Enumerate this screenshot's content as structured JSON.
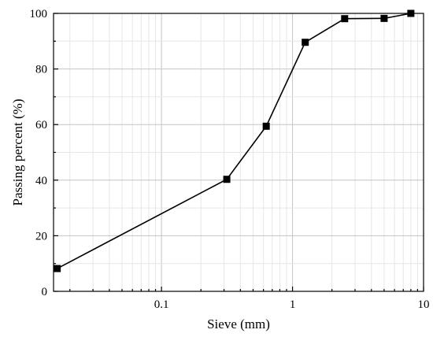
{
  "chart_data": {
    "type": "line",
    "xlabel": "Sieve (mm)",
    "ylabel": "Passing percent (%)",
    "xscale": "log",
    "xlim": [
      0.015,
      10
    ],
    "ylim": [
      0,
      100
    ],
    "grid": true,
    "marker": "square",
    "x_ticks": [
      {
        "value": 0.1,
        "label": "0.1"
      },
      {
        "value": 1,
        "label": "1"
      },
      {
        "value": 10,
        "label": "10"
      }
    ],
    "y_ticks": [
      {
        "value": 0,
        "label": "0"
      },
      {
        "value": 20,
        "label": "20"
      },
      {
        "value": 40,
        "label": "40"
      },
      {
        "value": 60,
        "label": "60"
      },
      {
        "value": 80,
        "label": "80"
      },
      {
        "value": 100,
        "label": "100"
      }
    ],
    "series": [
      {
        "x": [
          0.016,
          0.315,
          0.63,
          1.25,
          2.5,
          5,
          8
        ],
        "y": [
          8.2,
          40.3,
          59.4,
          89.6,
          98.1,
          98.2,
          100
        ]
      }
    ]
  }
}
